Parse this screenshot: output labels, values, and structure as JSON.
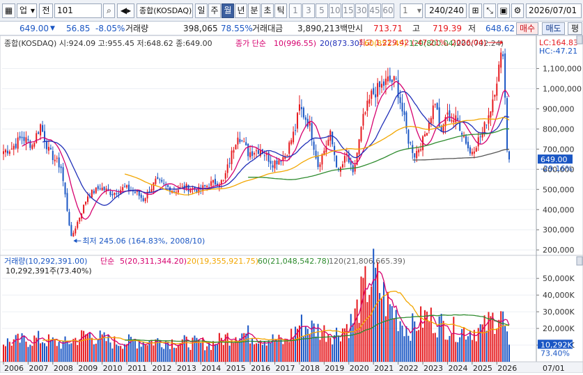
{
  "toolbar": {
    "market_select": "업",
    "category_label": "전",
    "code_value": "101",
    "index_name": "종합(KOSDAQ)",
    "period_tabs": [
      "일",
      "주",
      "월",
      "년",
      "분",
      "초",
      "틱"
    ],
    "active_period": "월",
    "interval_buttons": [
      "1",
      "3",
      "5",
      "10",
      "15",
      "30",
      "45",
      "60"
    ],
    "interval_value": "1",
    "count_display": "240/240",
    "date_value": "2026/07/01"
  },
  "quote": {
    "price": "649.00",
    "change": "56.85",
    "change_pct": "-8.05%",
    "volume_label": "거래량",
    "volume": "398,065",
    "volume_ratio": "78.55%",
    "amount_label": "거래대금",
    "amount": "3,890,213백만",
    "open_label": "시",
    "open": "713.71",
    "high_label": "고",
    "high": "719.39",
    "low_label": "저",
    "low": "648.62",
    "buy_button": "매수",
    "sell_button": "매도",
    "eval_button": "평"
  },
  "price_panel": {
    "ohlc_info": "종합(KOSDAQ) 시:924.09 고:955.45 저:648.62 종:649.00",
    "ma_label": "종가 단순",
    "ma_legend": [
      "10(996.55)",
      "20(873.30)",
      "60(851.49)",
      "120(800.04)",
      "200(702.24)"
    ],
    "max_annotation": "최고 1,229.42 (-47.21%, 2026/04)",
    "min_annotation": "최저 245.06 (164.83%, 2008/10)",
    "lc_label": "LC:164.83",
    "hc_label": "HC:-47.21",
    "current_price_label": "649.00",
    "current_change_label": "-29.16%"
  },
  "volume_panel": {
    "title": "거래량(10,292,391.00)",
    "ma_label": "단순",
    "ma_legend": [
      "5(20,311,344.20)",
      "20(19,355,921.75)",
      "60(21,048,542.78)",
      "120(21,806,665.39)"
    ],
    "current_volume_note": "10,292,391주(73.40%)",
    "current_volume_label": "10,292K",
    "current_volume_pct": "73.40%"
  },
  "x_axis": {
    "years": [
      "2006",
      "2007",
      "2008",
      "2009",
      "2010",
      "2011",
      "2012",
      "2013",
      "2014",
      "2015",
      "2016",
      "2017",
      "2018",
      "2019",
      "2020",
      "2021",
      "2022",
      "2023",
      "2024",
      "2025",
      "2026"
    ],
    "right_label": "07/01"
  },
  "chart_data": {
    "type": "candlestick",
    "title": "종합(KOSDAQ)",
    "period": "monthly",
    "x_start": "2006/01",
    "x_end": "2026/07",
    "price_axis": {
      "ticks": [
        200,
        300,
        400,
        500,
        600,
        700,
        800,
        900,
        1000,
        1100
      ],
      "labels": [
        "200,000",
        "300,000",
        "400,000",
        "500,000",
        "600,000",
        "700,000",
        "800,000",
        "900,000",
        "1,000,000",
        "1,100,000"
      ],
      "ylim": [
        180,
        1250
      ]
    },
    "volume_axis": {
      "ticks": [
        10000,
        20000,
        30000,
        40000,
        50000
      ],
      "labels": [
        "10,000K",
        "20,000K",
        "30,000K",
        "40,000K",
        "50,000K"
      ],
      "ylim": [
        0,
        58000
      ]
    },
    "close_keypoints": [
      {
        "date": "2006-01",
        "close": 690
      },
      {
        "date": "2006-05",
        "close": 705
      },
      {
        "date": "2006-10",
        "close": 760
      },
      {
        "date": "2007-03",
        "close": 720
      },
      {
        "date": "2007-07",
        "close": 820
      },
      {
        "date": "2007-11",
        "close": 690
      },
      {
        "date": "2008-05",
        "close": 610
      },
      {
        "date": "2008-10",
        "close": 260
      },
      {
        "date": "2009-03",
        "close": 390
      },
      {
        "date": "2009-06",
        "close": 470
      },
      {
        "date": "2009-12",
        "close": 510
      },
      {
        "date": "2010-06",
        "close": 480
      },
      {
        "date": "2010-12",
        "close": 510
      },
      {
        "date": "2011-06",
        "close": 480
      },
      {
        "date": "2011-09",
        "close": 450
      },
      {
        "date": "2012-03",
        "close": 540
      },
      {
        "date": "2012-12",
        "close": 496
      },
      {
        "date": "2013-06",
        "close": 510
      },
      {
        "date": "2013-12",
        "close": 496
      },
      {
        "date": "2014-06",
        "close": 530
      },
      {
        "date": "2014-12",
        "close": 540
      },
      {
        "date": "2015-07",
        "close": 780
      },
      {
        "date": "2015-12",
        "close": 682
      },
      {
        "date": "2016-06",
        "close": 700
      },
      {
        "date": "2016-12",
        "close": 631
      },
      {
        "date": "2017-06",
        "close": 668
      },
      {
        "date": "2017-11",
        "close": 800
      },
      {
        "date": "2018-01",
        "close": 908
      },
      {
        "date": "2018-06",
        "close": 817
      },
      {
        "date": "2018-10",
        "close": 620
      },
      {
        "date": "2019-04",
        "close": 770
      },
      {
        "date": "2019-08",
        "close": 580
      },
      {
        "date": "2019-12",
        "close": 670
      },
      {
        "date": "2020-03",
        "close": 570
      },
      {
        "date": "2020-08",
        "close": 850
      },
      {
        "date": "2020-12",
        "close": 968
      },
      {
        "date": "2021-08",
        "close": 1040
      },
      {
        "date": "2021-12",
        "close": 1033
      },
      {
        "date": "2022-06",
        "close": 745
      },
      {
        "date": "2022-09",
        "close": 673
      },
      {
        "date": "2023-01",
        "close": 740
      },
      {
        "date": "2023-07",
        "close": 940
      },
      {
        "date": "2023-10",
        "close": 765
      },
      {
        "date": "2023-12",
        "close": 866
      },
      {
        "date": "2024-06",
        "close": 840
      },
      {
        "date": "2024-10",
        "close": 740
      },
      {
        "date": "2024-12",
        "close": 678
      },
      {
        "date": "2025-06",
        "close": 780
      },
      {
        "date": "2025-10",
        "close": 905
      },
      {
        "date": "2026-04",
        "close": 1200
      },
      {
        "date": "2026-06",
        "close": 706
      },
      {
        "date": "2026-07",
        "close": 649
      }
    ],
    "volume_keypoints": [
      {
        "date": "2006-01",
        "volume": 12000
      },
      {
        "date": "2007-06",
        "volume": 14000
      },
      {
        "date": "2008-06",
        "volume": 11000
      },
      {
        "date": "2009-06",
        "volume": 17000
      },
      {
        "date": "2010-06",
        "volume": 12000
      },
      {
        "date": "2012-06",
        "volume": 13000
      },
      {
        "date": "2014-06",
        "volume": 11000
      },
      {
        "date": "2015-07",
        "volume": 18000
      },
      {
        "date": "2017-06",
        "volume": 12000
      },
      {
        "date": "2018-01",
        "volume": 23000
      },
      {
        "date": "2019-06",
        "volume": 17000
      },
      {
        "date": "2020-03",
        "volume": 25000
      },
      {
        "date": "2020-08",
        "volume": 42000
      },
      {
        "date": "2021-01",
        "volume": 53000
      },
      {
        "date": "2021-08",
        "volume": 35000
      },
      {
        "date": "2022-06",
        "volume": 20000
      },
      {
        "date": "2023-03",
        "volume": 28000
      },
      {
        "date": "2023-08",
        "volume": 24000
      },
      {
        "date": "2024-06",
        "volume": 19000
      },
      {
        "date": "2025-06",
        "volume": 20000
      },
      {
        "date": "2026-03",
        "volume": 31000
      },
      {
        "date": "2026-07",
        "volume": 10292
      }
    ],
    "ma_colors": {
      "ma10": "#d6006e",
      "ma20": "#1f2fb8",
      "ma60": "#f2a600",
      "ma120": "#2e8b2e",
      "ma200": "#555555"
    },
    "up_color": "#e6191e",
    "down_color": "#1a56c4"
  }
}
